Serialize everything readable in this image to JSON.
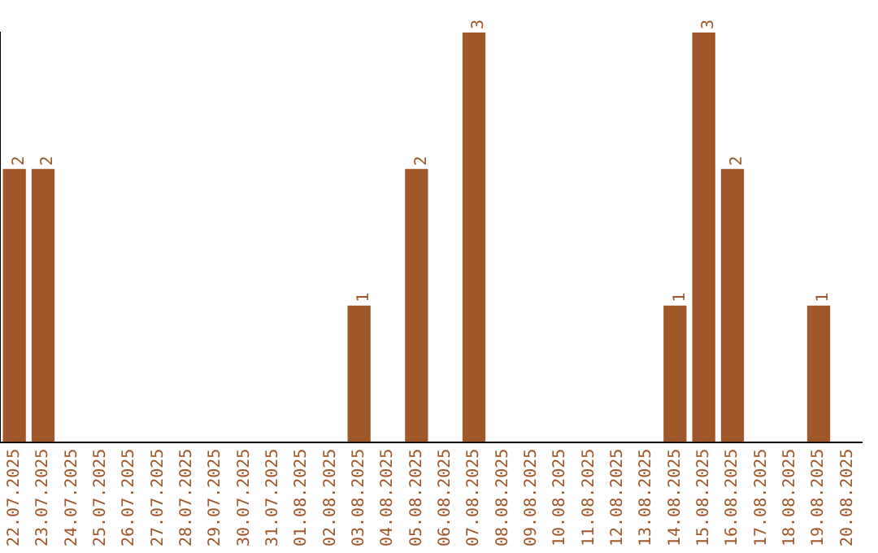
{
  "chart_data": {
    "type": "bar",
    "categories": [
      "22.07.2025",
      "23.07.2025",
      "24.07.2025",
      "25.07.2025",
      "26.07.2025",
      "27.07.2025",
      "28.07.2025",
      "29.07.2025",
      "30.07.2025",
      "31.07.2025",
      "01.08.2025",
      "02.08.2025",
      "03.08.2025",
      "04.08.2025",
      "05.08.2025",
      "06.08.2025",
      "07.08.2025",
      "08.08.2025",
      "09.08.2025",
      "10.08.2025",
      "11.08.2025",
      "12.08.2025",
      "13.08.2025",
      "14.08.2025",
      "15.08.2025",
      "16.08.2025",
      "17.08.2025",
      "18.08.2025",
      "19.08.2025",
      "20.08.2025"
    ],
    "values": [
      2,
      2,
      0,
      0,
      0,
      0,
      0,
      0,
      0,
      0,
      0,
      0,
      1,
      0,
      2,
      0,
      3,
      0,
      0,
      0,
      0,
      0,
      0,
      1,
      3,
      2,
      0,
      0,
      1,
      0
    ],
    "value_labels": [
      "2",
      "2",
      null,
      null,
      null,
      null,
      null,
      null,
      null,
      null,
      null,
      null,
      "1",
      null,
      "2",
      null,
      "3",
      null,
      null,
      null,
      null,
      null,
      null,
      "1",
      "3",
      "2",
      null,
      null,
      "1",
      null
    ],
    "color": "#a0572a",
    "ylim": [
      0,
      3
    ],
    "tick_labels": "x",
    "grid": false,
    "legend": false
  }
}
